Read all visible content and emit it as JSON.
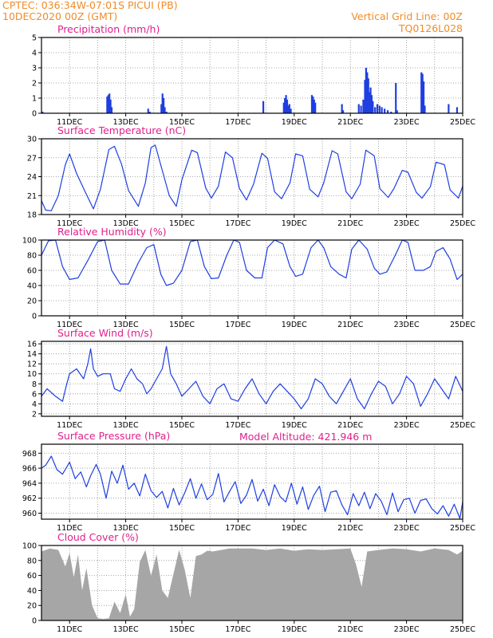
{
  "header": {
    "station": "CPTEC:   036:34W-07:01S   PICUI (PB)",
    "date": "10DEC2020 00Z (GMT)",
    "grid_note": "Vertical Grid Line: 00Z",
    "model_code": "TQ0126L028"
  },
  "model_altitude": "Model Altitude: 421.946 m",
  "x_axis": {
    "start_day": 10,
    "end_day": 25,
    "tick_labels": [
      "11DEC",
      "13DEC",
      "15DEC",
      "17DEC",
      "19DEC",
      "21DEC",
      "23DEC",
      "25DEC"
    ]
  },
  "colors": {
    "series": "#1f3fe0",
    "bars": "#1f3fe0",
    "cloud": "#a6a6a6",
    "header": "#f08c28",
    "title": "#e0208c",
    "grid": "#909090"
  },
  "chart_data": [
    {
      "type": "bar",
      "title": "Precipitation (mm/h)",
      "ylim": [
        0,
        5
      ],
      "yticks": [
        "0",
        "1",
        "2",
        "3",
        "4",
        "5"
      ],
      "x_days": [
        10.04,
        12.34,
        12.38,
        12.42,
        12.46,
        12.5,
        13.8,
        13.86,
        14.27,
        14.31,
        14.35,
        14.39,
        14.45,
        17.9,
        18.63,
        18.67,
        18.71,
        18.75,
        18.79,
        18.83,
        18.88,
        19.63,
        19.67,
        19.71,
        19.75,
        20.7,
        20.74,
        21.3,
        21.38,
        21.46,
        21.52,
        21.56,
        21.6,
        21.64,
        21.68,
        21.72,
        21.76,
        21.8,
        21.88,
        21.96,
        22.04,
        22.12,
        22.22,
        22.33,
        22.45,
        22.62,
        22.66,
        23.53,
        23.57,
        23.61,
        23.65,
        24.5,
        24.8
      ],
      "values": [
        0.1,
        1.1,
        1.2,
        1.3,
        0.9,
        0.4,
        0.3,
        0.1,
        0.6,
        1.3,
        1.0,
        0.4,
        0.1,
        0.8,
        0.7,
        1.0,
        1.2,
        0.9,
        0.5,
        0.6,
        0.3,
        1.2,
        1.1,
        0.9,
        0.7,
        0.6,
        0.2,
        0.6,
        0.5,
        0.9,
        2.2,
        3.0,
        2.7,
        2.3,
        1.4,
        1.7,
        1.2,
        0.8,
        0.4,
        0.6,
        0.5,
        0.4,
        0.3,
        0.2,
        0.1,
        2.0,
        0.2,
        2.7,
        2.6,
        2.1,
        0.5,
        0.6,
        0.4
      ]
    },
    {
      "type": "line",
      "title": "Surface Temperature (nC)",
      "ylim": [
        18,
        30
      ],
      "yticks": [
        "18",
        "21",
        "24",
        "27",
        "30"
      ],
      "x": [
        10,
        10.15,
        10.35,
        10.6,
        10.85,
        11.0,
        11.25,
        11.6,
        11.85,
        12.1,
        12.4,
        12.6,
        12.85,
        13.1,
        13.45,
        13.7,
        13.9,
        14.05,
        14.3,
        14.55,
        14.8,
        15.0,
        15.35,
        15.55,
        15.85,
        16.05,
        16.3,
        16.55,
        16.8,
        17.05,
        17.3,
        17.55,
        17.85,
        18.05,
        18.3,
        18.55,
        18.85,
        19.05,
        19.3,
        19.55,
        19.85,
        20.05,
        20.35,
        20.55,
        20.85,
        21.05,
        21.35,
        21.55,
        21.85,
        22.05,
        22.35,
        22.55,
        22.85,
        23.05,
        23.35,
        23.55,
        23.85,
        24.05,
        24.35,
        24.55,
        24.85,
        25.0
      ],
      "values": [
        20.2,
        18.7,
        18.6,
        21.0,
        25.9,
        27.6,
        24.5,
        21.2,
        18.9,
        22.0,
        28.3,
        28.8,
        26.0,
        21.8,
        19.3,
        23.0,
        28.6,
        29.0,
        25.0,
        21.0,
        19.3,
        23.5,
        28.2,
        27.8,
        22.2,
        20.6,
        22.5,
        27.9,
        27.0,
        22.1,
        20.3,
        22.8,
        27.7,
        26.9,
        21.6,
        20.5,
        23.0,
        27.6,
        27.3,
        22.0,
        20.8,
        23.0,
        28.1,
        27.6,
        21.6,
        20.5,
        22.8,
        28.2,
        27.3,
        22.1,
        20.7,
        22.1,
        25.0,
        24.7,
        21.5,
        20.6,
        22.4,
        26.3,
        25.9,
        21.9,
        20.6,
        22.5
      ]
    },
    {
      "type": "line",
      "title": "Relative Humidity (%)",
      "ylim": [
        0,
        100
      ],
      "yticks": [
        "0",
        "20",
        "40",
        "60",
        "80",
        "100"
      ],
      "x": [
        10,
        10.25,
        10.5,
        10.75,
        11.0,
        11.3,
        11.65,
        12.0,
        12.25,
        12.5,
        12.8,
        13.1,
        13.45,
        13.75,
        14.0,
        14.25,
        14.45,
        14.7,
        15.0,
        15.3,
        15.55,
        15.8,
        16.05,
        16.3,
        16.6,
        16.85,
        17.05,
        17.3,
        17.6,
        17.85,
        18.05,
        18.3,
        18.6,
        18.85,
        19.05,
        19.3,
        19.6,
        19.85,
        20.05,
        20.3,
        20.6,
        20.85,
        21.05,
        21.3,
        21.6,
        21.85,
        22.05,
        22.3,
        22.6,
        22.85,
        23.05,
        23.3,
        23.6,
        23.85,
        24.05,
        24.3,
        24.55,
        24.8,
        25.0
      ],
      "values": [
        80,
        99,
        100,
        65,
        48,
        50,
        73,
        98,
        100,
        60,
        42,
        42,
        70,
        90,
        94,
        55,
        40,
        43,
        60,
        98,
        100,
        65,
        49,
        50,
        80,
        100,
        97,
        60,
        50,
        50,
        90,
        100,
        95,
        65,
        52,
        55,
        90,
        100,
        90,
        65,
        55,
        50,
        88,
        100,
        88,
        63,
        55,
        58,
        80,
        100,
        97,
        60,
        60,
        65,
        85,
        90,
        75,
        48,
        55
      ]
    },
    {
      "type": "line",
      "title": "Surface Wind (m/s)",
      "ylim": [
        1.5,
        16.5
      ],
      "yticks": [
        "2",
        "4",
        "6",
        "8",
        "10",
        "12",
        "14",
        "16"
      ],
      "x": [
        10,
        10.2,
        10.5,
        10.75,
        10.9,
        11.0,
        11.25,
        11.5,
        11.65,
        11.75,
        11.85,
        12.0,
        12.2,
        12.45,
        12.6,
        12.8,
        13.0,
        13.2,
        13.4,
        13.6,
        13.75,
        13.9,
        14.1,
        14.3,
        14.45,
        14.6,
        14.8,
        15.0,
        15.25,
        15.5,
        15.75,
        16.0,
        16.25,
        16.5,
        16.75,
        17.0,
        17.25,
        17.5,
        17.75,
        18.0,
        18.25,
        18.5,
        18.75,
        19.0,
        19.25,
        19.5,
        19.75,
        20.0,
        20.25,
        20.5,
        20.75,
        21.0,
        21.25,
        21.5,
        21.75,
        22.0,
        22.25,
        22.5,
        22.75,
        23.0,
        23.25,
        23.5,
        23.75,
        24.0,
        24.25,
        24.5,
        24.75,
        25.0
      ],
      "values": [
        5.5,
        7.0,
        5.5,
        4.5,
        8.0,
        10.0,
        11.0,
        9.0,
        12.0,
        15.0,
        11.0,
        9.5,
        10.0,
        10.0,
        7.0,
        6.5,
        9.0,
        11.0,
        9.0,
        8.0,
        6.0,
        7.0,
        9.0,
        11.0,
        15.5,
        10.0,
        8.0,
        5.5,
        7.0,
        8.5,
        5.5,
        4.0,
        7.0,
        8.0,
        5.0,
        4.5,
        7.0,
        9.0,
        6.0,
        4.0,
        6.5,
        8.0,
        6.5,
        5.0,
        3.0,
        5.0,
        9.0,
        8.0,
        5.5,
        4.0,
        6.5,
        9.0,
        5.0,
        3.0,
        6.0,
        8.5,
        7.5,
        4.0,
        6.0,
        9.5,
        8.0,
        3.5,
        6.0,
        9.0,
        7.0,
        5.0,
        9.5,
        6.5
      ]
    },
    {
      "type": "line",
      "title": "Surface Pressure (hPa)",
      "ylim": [
        959.2,
        969.2
      ],
      "yticks": [
        "960",
        "962",
        "964",
        "966",
        "968"
      ],
      "x": [
        10,
        10.15,
        10.35,
        10.55,
        10.75,
        11.0,
        11.2,
        11.4,
        11.6,
        11.75,
        11.95,
        12.1,
        12.3,
        12.5,
        12.7,
        12.9,
        13.1,
        13.3,
        13.5,
        13.7,
        13.9,
        14.1,
        14.3,
        14.5,
        14.7,
        14.9,
        15.1,
        15.3,
        15.5,
        15.7,
        15.9,
        16.1,
        16.3,
        16.5,
        16.7,
        16.9,
        17.1,
        17.3,
        17.5,
        17.7,
        17.9,
        18.1,
        18.3,
        18.5,
        18.7,
        18.9,
        19.1,
        19.3,
        19.5,
        19.7,
        19.9,
        20.1,
        20.3,
        20.5,
        20.7,
        20.9,
        21.1,
        21.3,
        21.5,
        21.7,
        21.9,
        22.1,
        22.3,
        22.5,
        22.7,
        22.9,
        23.1,
        23.3,
        23.5,
        23.7,
        23.9,
        24.1,
        24.3,
        24.5,
        24.7,
        24.9,
        25.0
      ],
      "values": [
        966.0,
        966.4,
        967.6,
        965.8,
        965.2,
        966.8,
        964.6,
        965.5,
        963.5,
        965.0,
        966.5,
        965.2,
        962.0,
        965.6,
        964.0,
        966.4,
        963.2,
        964.0,
        962.3,
        965.2,
        963.0,
        962.1,
        962.9,
        960.7,
        963.3,
        961.1,
        962.7,
        964.6,
        962.0,
        963.9,
        961.8,
        962.5,
        965.3,
        961.5,
        962.9,
        964.2,
        961.3,
        962.4,
        964.5,
        961.6,
        963.2,
        961.0,
        963.8,
        962.2,
        961.5,
        964.0,
        961.2,
        963.5,
        960.5,
        962.4,
        963.6,
        960.2,
        962.8,
        963.0,
        961.1,
        959.8,
        962.6,
        961.0,
        962.8,
        960.6,
        962.6,
        961.6,
        959.8,
        962.7,
        960.2,
        961.8,
        962.0,
        960.0,
        961.7,
        961.9,
        960.6,
        959.9,
        961.0,
        959.6,
        961.2,
        959.3,
        961.5
      ]
    },
    {
      "type": "area",
      "title": "Cloud Cover (%)",
      "ylim": [
        0,
        100
      ],
      "yticks": [
        "0",
        "20",
        "40",
        "60",
        "80",
        "100"
      ],
      "x": [
        10.0,
        10.3,
        10.6,
        10.85,
        11.0,
        11.15,
        11.3,
        11.45,
        11.6,
        11.8,
        12.0,
        12.2,
        12.4,
        12.6,
        12.8,
        13.0,
        13.15,
        13.3,
        13.5,
        13.7,
        13.9,
        14.1,
        14.3,
        14.5,
        14.7,
        14.9,
        15.1,
        15.3,
        15.5,
        15.7,
        15.9,
        16.1,
        16.4,
        16.7,
        17.0,
        17.5,
        18.0,
        18.5,
        19.0,
        19.5,
        20.0,
        20.5,
        21.0,
        21.2,
        21.4,
        21.6,
        22.0,
        22.5,
        23.0,
        23.5,
        24.0,
        24.5,
        24.8,
        25.0
      ],
      "values": [
        92,
        96,
        94,
        72,
        90,
        58,
        88,
        40,
        70,
        20,
        3,
        2,
        3,
        25,
        10,
        35,
        5,
        15,
        78,
        94,
        60,
        88,
        40,
        30,
        62,
        94,
        68,
        30,
        86,
        88,
        93,
        92,
        94,
        96,
        96,
        96,
        94,
        96,
        93,
        95,
        94,
        95,
        96,
        75,
        45,
        92,
        94,
        96,
        95,
        92,
        96,
        94,
        88,
        93
      ]
    }
  ]
}
